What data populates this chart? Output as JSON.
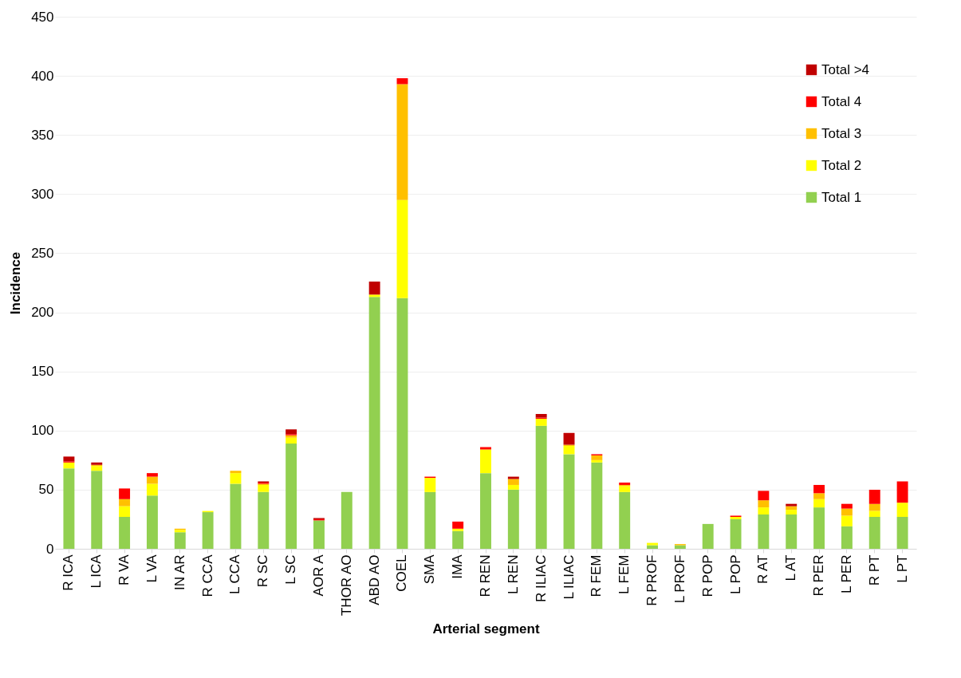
{
  "chart_data": {
    "type": "bar",
    "stacked": true,
    "xlabel": "Arterial segment",
    "ylabel": "Incidence",
    "categories": [
      "R ICA",
      "L ICA",
      "R VA",
      "L VA",
      "IN AR",
      "R CCA",
      "L CCA",
      "R SC",
      "L SC",
      "AOR A",
      "THOR AO",
      "ABD AO",
      "COEL",
      "SMA",
      "IMA",
      "R REN",
      "L REN",
      "R ILIAC",
      "L ILIAC",
      "R FEM",
      "L FEM",
      "R PROF",
      "L PROF",
      "R POP",
      "L POP",
      "R AT",
      "L AT",
      "R PER",
      "L PER",
      "R PT",
      "L PT"
    ],
    "series": [
      {
        "name": "Total 1",
        "color": "#92d050",
        "values": [
          68,
          66,
          27,
          45,
          14,
          31,
          55,
          48,
          89,
          24,
          48,
          213,
          212,
          48,
          15,
          64,
          50,
          104,
          80,
          73,
          48,
          3,
          3,
          21,
          25,
          29,
          29,
          35,
          19,
          27,
          27
        ]
      },
      {
        "name": "Total 2",
        "color": "#ffff00",
        "values": [
          5,
          4,
          9,
          10,
          2,
          1,
          9,
          6,
          5,
          0,
          0,
          2,
          83,
          12,
          2,
          20,
          4,
          6,
          7,
          2,
          5,
          2,
          0,
          0,
          2,
          6,
          4,
          7,
          9,
          5,
          12
        ]
      },
      {
        "name": "Total 3",
        "color": "#ffc000",
        "values": [
          0,
          1,
          6,
          6,
          1,
          0,
          2,
          1,
          2,
          0,
          0,
          0,
          98,
          0,
          0,
          0,
          5,
          0,
          1,
          4,
          1,
          0,
          1,
          0,
          0,
          6,
          3,
          5,
          6,
          6,
          0
        ]
      },
      {
        "name": "Total 4",
        "color": "#ff0000",
        "values": [
          1,
          0,
          9,
          3,
          0,
          0,
          0,
          1,
          1,
          1,
          0,
          0,
          5,
          1,
          6,
          2,
          0,
          1,
          0,
          1,
          2,
          0,
          0,
          0,
          1,
          8,
          0,
          7,
          4,
          12,
          18
        ]
      },
      {
        "name": "Total >4",
        "color": "#c00000",
        "values": [
          4,
          2,
          0,
          0,
          0,
          0,
          0,
          1,
          4,
          1,
          0,
          11,
          0,
          0,
          0,
          0,
          2,
          3,
          10,
          0,
          0,
          0,
          0,
          0,
          0,
          0,
          2,
          0,
          0,
          0,
          0
        ]
      }
    ],
    "ylim": [
      0,
      450
    ],
    "yticks": [
      0,
      50,
      100,
      150,
      200,
      250,
      300,
      350,
      400,
      450
    ],
    "grid": "y",
    "legend": "top right"
  }
}
